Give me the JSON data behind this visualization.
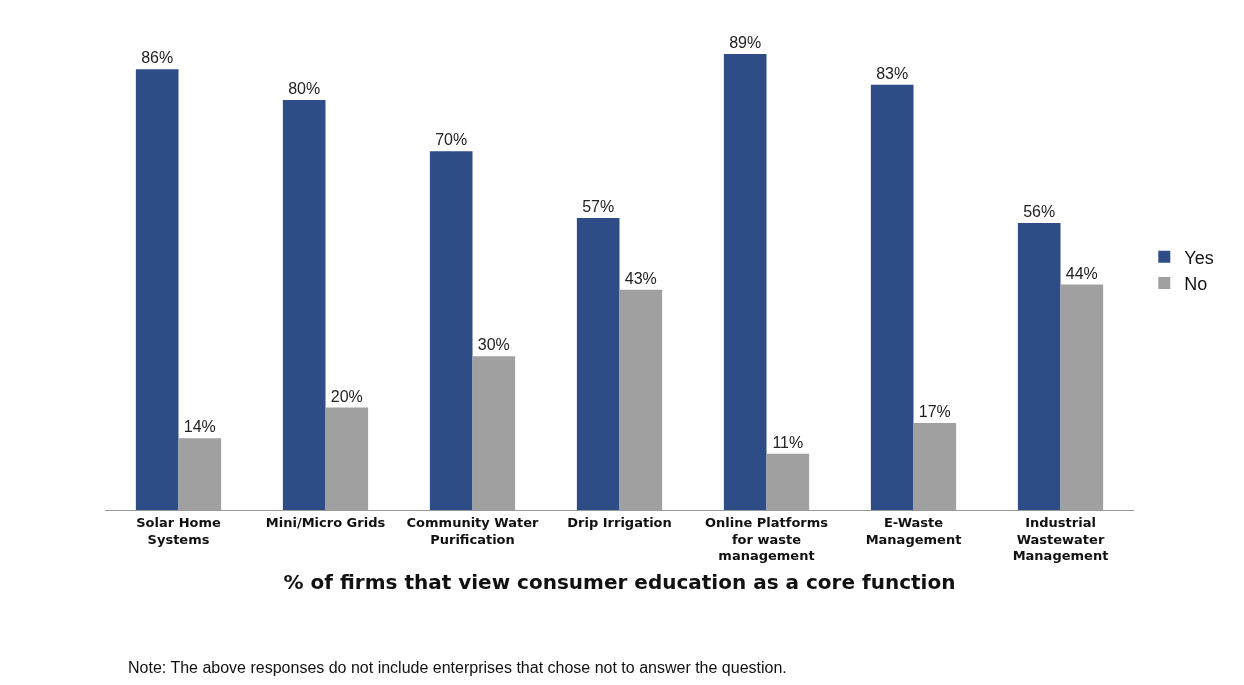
{
  "chart_data": {
    "type": "bar",
    "xlabel": "% of firms that view consumer education as a core function",
    "categories": [
      "Solar Home Systems",
      "Mini/Micro Grids",
      "Community Water Purification",
      "Drip Irrigation",
      "Online Platforms for waste management",
      "E-Waste Management",
      "Industrial Wastewater Management"
    ],
    "series": [
      {
        "name": "Yes",
        "color": "#2e4d87",
        "values": [
          86,
          80,
          70,
          57,
          89,
          83,
          56
        ],
        "value_labels": [
          "86%",
          "80%",
          "70%",
          "57%",
          "89%",
          "83%",
          "56%"
        ]
      },
      {
        "name": "No",
        "color": "#a0a0a0",
        "values": [
          14,
          20,
          30,
          43,
          11,
          17,
          44
        ],
        "value_labels": [
          "14%",
          "20%",
          "30%",
          "43%",
          "11%",
          "17%",
          "44%"
        ]
      }
    ],
    "legend": "right",
    "annotations": [
      "Note: The above responses do not include enterprises that chose not to answer the question."
    ]
  }
}
